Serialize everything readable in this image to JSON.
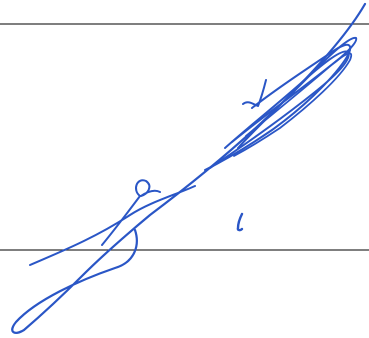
{
  "image": {
    "kind": "handwritten-signature",
    "background_color": "#ffffff",
    "line_color": "#333333",
    "ink_color": "#2a56c6"
  }
}
